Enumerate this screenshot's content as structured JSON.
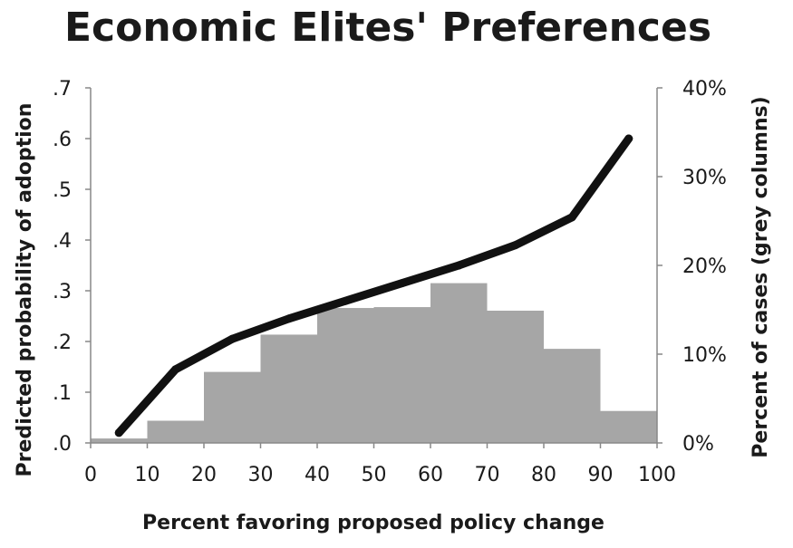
{
  "chart_data": {
    "type": "bar+line",
    "title": "Economic Elites' Preferences",
    "xlabel": "Percent favoring proposed policy change",
    "ylabel_left": "Predicted probability of adoption",
    "ylabel_right": "Percent of cases (grey columns)",
    "x_ticks": [
      "0",
      "10",
      "20",
      "30",
      "40",
      "50",
      "60",
      "70",
      "80",
      "90",
      "100"
    ],
    "y_left_ticks": [
      ".0",
      ".1",
      ".2",
      ".3",
      ".4",
      ".5",
      ".6",
      ".7"
    ],
    "y_right_ticks": [
      "0%",
      "10%",
      "20%",
      "30%",
      "40%"
    ],
    "xlim": [
      0,
      100
    ],
    "ylim_left": [
      0,
      0.7
    ],
    "ylim_right": [
      0,
      40
    ],
    "bars": {
      "name": "Percent of cases",
      "color": "#a6a6a6",
      "bins": [
        {
          "x0": 0,
          "x1": 10,
          "value": 0.5
        },
        {
          "x0": 10,
          "x1": 20,
          "value": 2.5
        },
        {
          "x0": 20,
          "x1": 30,
          "value": 8.0
        },
        {
          "x0": 30,
          "x1": 40,
          "value": 12.2
        },
        {
          "x0": 40,
          "x1": 50,
          "value": 15.2
        },
        {
          "x0": 50,
          "x1": 60,
          "value": 15.3
        },
        {
          "x0": 60,
          "x1": 70,
          "value": 18.0
        },
        {
          "x0": 70,
          "x1": 80,
          "value": 14.9
        },
        {
          "x0": 80,
          "x1": 90,
          "value": 10.6
        },
        {
          "x0": 90,
          "x1": 100,
          "value": 3.6
        }
      ]
    },
    "line": {
      "name": "Predicted probability of adoption",
      "color": "#111111",
      "x": [
        5,
        15,
        25,
        35,
        45,
        55,
        65,
        75,
        85,
        95
      ],
      "y": [
        0.02,
        0.145,
        0.205,
        0.245,
        0.28,
        0.315,
        0.35,
        0.39,
        0.445,
        0.6
      ]
    },
    "grid": false
  }
}
